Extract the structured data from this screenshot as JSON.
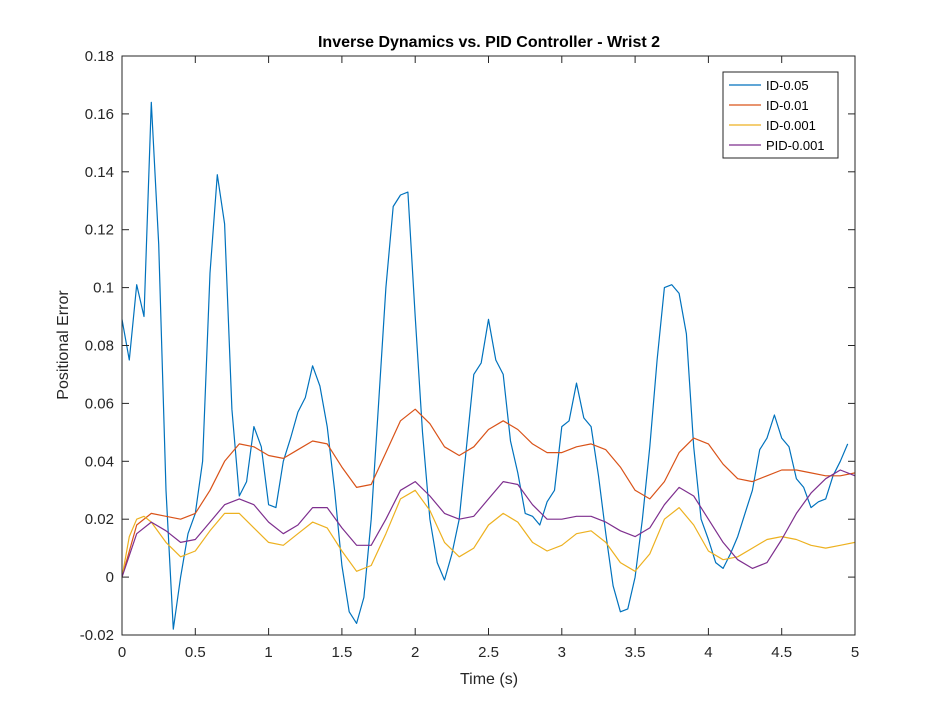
{
  "chart_data": {
    "type": "line",
    "title": "Inverse Dynamics vs. PID Controller - Wrist 2",
    "xlabel": "Time (s)",
    "ylabel": "Positional Error",
    "xlim": [
      0,
      5
    ],
    "ylim": [
      -0.02,
      0.18
    ],
    "xticks": [
      0,
      0.5,
      1,
      1.5,
      2,
      2.5,
      3,
      3.5,
      4,
      4.5,
      5
    ],
    "xtick_labels": [
      "0",
      "0.5",
      "1",
      "1.5",
      "2",
      "2.5",
      "3",
      "3.5",
      "4",
      "4.5",
      "5"
    ],
    "yticks": [
      -0.02,
      0,
      0.02,
      0.04,
      0.06,
      0.08,
      0.1,
      0.12,
      0.14,
      0.16,
      0.18
    ],
    "ytick_labels": [
      "-0.02",
      "0",
      "0.02",
      "0.04",
      "0.06",
      "0.08",
      "0.1",
      "0.12",
      "0.14",
      "0.16",
      "0.18"
    ],
    "grid": false,
    "legend_position": "top-right",
    "series": [
      {
        "name": "ID-0.05",
        "color": "#0072BD",
        "x": [
          0,
          0.05,
          0.1,
          0.15,
          0.2,
          0.25,
          0.3,
          0.35,
          0.4,
          0.45,
          0.5,
          0.55,
          0.6,
          0.65,
          0.7,
          0.75,
          0.8,
          0.85,
          0.9,
          0.95,
          1.0,
          1.05,
          1.1,
          1.15,
          1.2,
          1.25,
          1.3,
          1.35,
          1.4,
          1.45,
          1.5,
          1.55,
          1.6,
          1.65,
          1.7,
          1.75,
          1.8,
          1.85,
          1.9,
          1.95,
          2.0,
          2.05,
          2.1,
          2.15,
          2.2,
          2.25,
          2.3,
          2.35,
          2.4,
          2.45,
          2.5,
          2.55,
          2.6,
          2.65,
          2.7,
          2.75,
          2.8,
          2.85,
          2.9,
          2.95,
          3.0,
          3.05,
          3.1,
          3.15,
          3.2,
          3.25,
          3.3,
          3.35,
          3.4,
          3.45,
          3.5,
          3.55,
          3.6,
          3.65,
          3.7,
          3.75,
          3.8,
          3.85,
          3.9,
          3.95,
          4.0,
          4.05,
          4.1,
          4.15,
          4.2,
          4.25,
          4.3,
          4.35,
          4.4,
          4.45,
          4.5,
          4.55,
          4.6,
          4.65,
          4.7,
          4.75,
          4.8,
          4.85,
          4.9,
          4.95
        ],
        "y": [
          0.089,
          0.075,
          0.101,
          0.09,
          0.164,
          0.115,
          0.03,
          -0.018,
          0.0,
          0.015,
          0.022,
          0.04,
          0.105,
          0.139,
          0.122,
          0.058,
          0.028,
          0.033,
          0.052,
          0.045,
          0.025,
          0.024,
          0.04,
          0.048,
          0.057,
          0.062,
          0.073,
          0.066,
          0.052,
          0.03,
          0.004,
          -0.012,
          -0.016,
          -0.007,
          0.02,
          0.06,
          0.1,
          0.128,
          0.132,
          0.133,
          0.09,
          0.05,
          0.02,
          0.005,
          -0.001,
          0.008,
          0.02,
          0.045,
          0.07,
          0.074,
          0.089,
          0.075,
          0.07,
          0.047,
          0.036,
          0.022,
          0.021,
          0.018,
          0.026,
          0.03,
          0.052,
          0.054,
          0.067,
          0.055,
          0.052,
          0.035,
          0.015,
          -0.003,
          -0.012,
          -0.011,
          0.0,
          0.02,
          0.045,
          0.075,
          0.1,
          0.101,
          0.098,
          0.084,
          0.045,
          0.02,
          0.013,
          0.005,
          0.003,
          0.008,
          0.014,
          0.022,
          0.03,
          0.044,
          0.048,
          0.056,
          0.048,
          0.045,
          0.034,
          0.031,
          0.024,
          0.026,
          0.027,
          0.035,
          0.04,
          0.046
        ]
      },
      {
        "name": "ID-0.01",
        "color": "#D95319",
        "x": [
          0,
          0.1,
          0.2,
          0.3,
          0.4,
          0.5,
          0.6,
          0.7,
          0.8,
          0.9,
          1.0,
          1.1,
          1.2,
          1.3,
          1.4,
          1.5,
          1.6,
          1.7,
          1.8,
          1.9,
          2.0,
          2.1,
          2.2,
          2.3,
          2.4,
          2.5,
          2.6,
          2.7,
          2.8,
          2.9,
          3.0,
          3.1,
          3.2,
          3.3,
          3.4,
          3.5,
          3.6,
          3.7,
          3.8,
          3.9,
          4.0,
          4.1,
          4.2,
          4.3,
          4.4,
          4.5,
          4.6,
          4.7,
          4.8,
          4.9,
          5.0
        ],
        "y": [
          0.0,
          0.018,
          0.022,
          0.021,
          0.02,
          0.022,
          0.03,
          0.04,
          0.046,
          0.045,
          0.042,
          0.041,
          0.044,
          0.047,
          0.046,
          0.038,
          0.031,
          0.032,
          0.043,
          0.054,
          0.058,
          0.053,
          0.045,
          0.042,
          0.045,
          0.051,
          0.054,
          0.051,
          0.046,
          0.043,
          0.043,
          0.045,
          0.046,
          0.044,
          0.038,
          0.03,
          0.027,
          0.033,
          0.043,
          0.048,
          0.046,
          0.039,
          0.034,
          0.033,
          0.035,
          0.037,
          0.037,
          0.036,
          0.035,
          0.035,
          0.036
        ]
      },
      {
        "name": "ID-0.001",
        "color": "#EDB120",
        "x": [
          0,
          0.05,
          0.1,
          0.15,
          0.2,
          0.3,
          0.4,
          0.5,
          0.6,
          0.7,
          0.8,
          0.9,
          1.0,
          1.1,
          1.2,
          1.3,
          1.4,
          1.5,
          1.6,
          1.7,
          1.8,
          1.9,
          2.0,
          2.1,
          2.2,
          2.3,
          2.4,
          2.5,
          2.6,
          2.7,
          2.8,
          2.9,
          3.0,
          3.1,
          3.2,
          3.3,
          3.4,
          3.5,
          3.6,
          3.7,
          3.8,
          3.9,
          4.0,
          4.1,
          4.2,
          4.3,
          4.4,
          4.5,
          4.6,
          4.7,
          4.8,
          4.9,
          5.0
        ],
        "y": [
          0.0,
          0.014,
          0.02,
          0.021,
          0.019,
          0.012,
          0.007,
          0.009,
          0.016,
          0.022,
          0.022,
          0.017,
          0.012,
          0.011,
          0.015,
          0.019,
          0.017,
          0.009,
          0.002,
          0.004,
          0.015,
          0.027,
          0.03,
          0.023,
          0.012,
          0.007,
          0.01,
          0.018,
          0.022,
          0.019,
          0.012,
          0.009,
          0.011,
          0.015,
          0.016,
          0.012,
          0.005,
          0.002,
          0.008,
          0.02,
          0.024,
          0.018,
          0.009,
          0.006,
          0.007,
          0.01,
          0.013,
          0.014,
          0.013,
          0.011,
          0.01,
          0.011,
          0.012
        ]
      },
      {
        "name": "PID-0.001",
        "color": "#7E2F8E",
        "x": [
          0,
          0.1,
          0.2,
          0.3,
          0.4,
          0.5,
          0.6,
          0.7,
          0.8,
          0.9,
          1.0,
          1.1,
          1.2,
          1.3,
          1.4,
          1.5,
          1.6,
          1.7,
          1.8,
          1.9,
          2.0,
          2.1,
          2.2,
          2.3,
          2.4,
          2.5,
          2.6,
          2.7,
          2.8,
          2.9,
          3.0,
          3.1,
          3.2,
          3.3,
          3.4,
          3.5,
          3.6,
          3.7,
          3.8,
          3.9,
          4.0,
          4.1,
          4.2,
          4.3,
          4.4,
          4.5,
          4.6,
          4.7,
          4.8,
          4.9,
          5.0
        ],
        "y": [
          0.0,
          0.015,
          0.019,
          0.016,
          0.012,
          0.013,
          0.019,
          0.025,
          0.027,
          0.025,
          0.019,
          0.015,
          0.018,
          0.024,
          0.024,
          0.017,
          0.011,
          0.011,
          0.02,
          0.03,
          0.033,
          0.028,
          0.022,
          0.02,
          0.021,
          0.027,
          0.033,
          0.032,
          0.025,
          0.02,
          0.02,
          0.021,
          0.021,
          0.019,
          0.016,
          0.014,
          0.017,
          0.025,
          0.031,
          0.028,
          0.02,
          0.012,
          0.006,
          0.003,
          0.005,
          0.013,
          0.022,
          0.029,
          0.034,
          0.037,
          0.035
        ]
      }
    ]
  }
}
